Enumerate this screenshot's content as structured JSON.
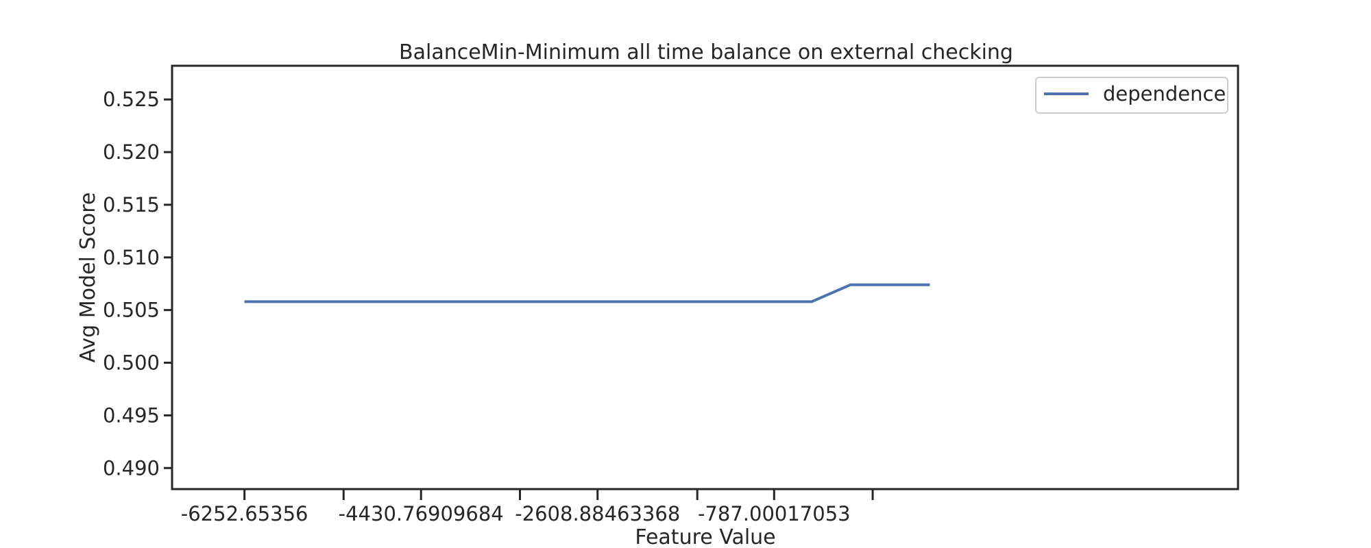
{
  "chart_data": {
    "type": "line",
    "title": "BalanceMin-Minimum all time balance on external checking",
    "xlabel": "Feature Value",
    "ylabel": "Avg Model Score",
    "xlim": [
      -7000,
      4000
    ],
    "ylim": [
      0.488,
      0.5282
    ],
    "x_ticks": [
      -6252.65356,
      -5230,
      -4430.76909684,
      -3410,
      -2608.88463368,
      -1580,
      -787.00017053,
      230
    ],
    "x_tick_labels": [
      "-6252.65356",
      "",
      "-4430.76909684",
      "",
      "-2608.88463368",
      "",
      "-787.00017053",
      ""
    ],
    "y_ticks": [
      0.49,
      0.495,
      0.5,
      0.505,
      0.51,
      0.515,
      0.52,
      0.525
    ],
    "y_tick_labels": [
      "0.490",
      "0.495",
      "0.500",
      "0.505",
      "0.510",
      "0.515",
      "0.520",
      "0.525"
    ],
    "series": [
      {
        "name": "dependence",
        "color": "#4c72b0",
        "x": [
          -6252.65356,
          -4430.76909684,
          -2608.88463368,
          -787.00017053,
          -400,
          0,
          820
        ],
        "y": [
          0.5058,
          0.5058,
          0.5058,
          0.5058,
          0.5058,
          0.5074,
          0.5074
        ]
      }
    ],
    "legend_position": "top-right",
    "grid": false
  }
}
